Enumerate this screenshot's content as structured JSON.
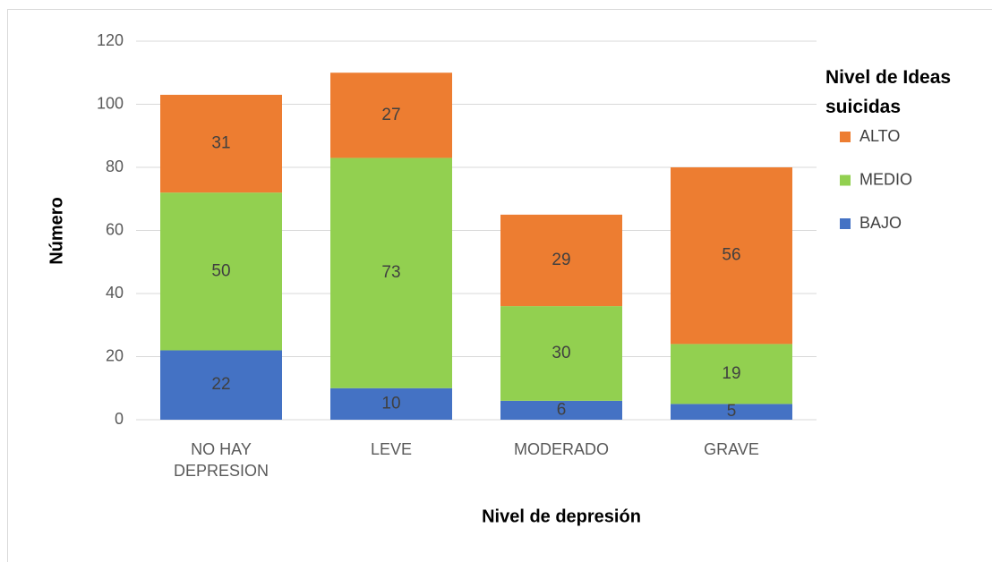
{
  "chart_data": {
    "type": "stacked_bar",
    "x_label": "Nivel de depresión",
    "y_label": "Número",
    "legend_title": "Nivel de Ideas suicidas",
    "legend_position": "right",
    "categories": [
      "NO HAY DEPRESION",
      "LEVE",
      "MODERADO",
      "GRAVE"
    ],
    "series": [
      {
        "name": "BAJO",
        "color": "#4472c4",
        "values": [
          22,
          10,
          6,
          5
        ]
      },
      {
        "name": "MEDIO",
        "color": "#92d050",
        "values": [
          50,
          73,
          30,
          19
        ]
      },
      {
        "name": "ALTO",
        "color": "#ed7d31",
        "values": [
          31,
          27,
          29,
          56
        ]
      }
    ],
    "ylim": [
      0,
      120
    ],
    "yticks": [
      0,
      20,
      40,
      60,
      80,
      100,
      120
    ],
    "grid": true
  }
}
